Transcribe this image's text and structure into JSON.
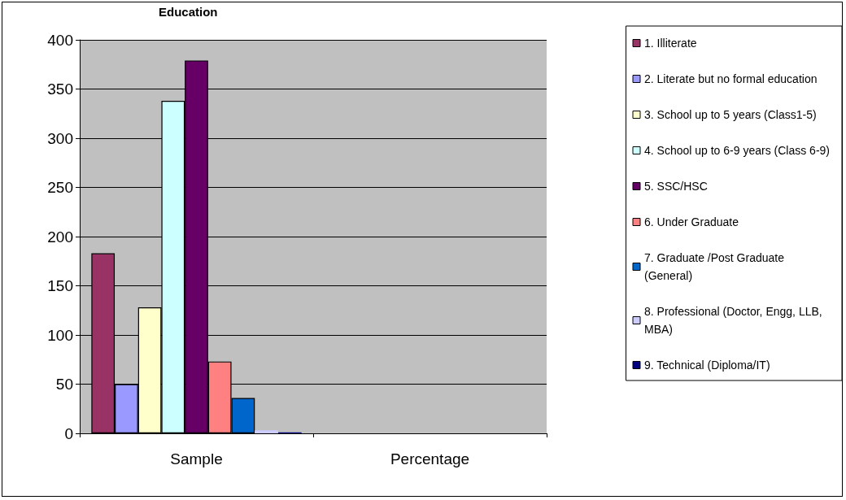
{
  "chart_data": {
    "type": "bar",
    "title": "Education",
    "categories": [
      "Sample",
      "Percentage"
    ],
    "series": [
      {
        "name": "1. Illiterate",
        "color": "#993366",
        "values": [
          183,
          null
        ]
      },
      {
        "name": "2. Literate but no formal education",
        "color": "#9999ff",
        "values": [
          50,
          null
        ]
      },
      {
        "name": "3. School up to 5 years (Class1-5)",
        "color": "#ffffcc",
        "values": [
          128,
          null
        ]
      },
      {
        "name": "4. School up to 6-9 years (Class 6-9)",
        "color": "#ccffff",
        "values": [
          338,
          null
        ]
      },
      {
        "name": "5. SSC/HSC",
        "color": "#660066",
        "values": [
          379,
          null
        ]
      },
      {
        "name": "6. Under Graduate",
        "color": "#ff8080",
        "values": [
          73,
          null
        ]
      },
      {
        "name": "7. Graduate /Post Graduate (General)",
        "color": "#0066cc",
        "values": [
          36,
          null
        ]
      },
      {
        "name": "8. Professional (Doctor, Engg, LLB,MBA)",
        "color": "#ccccff",
        "values": [
          3,
          null
        ]
      },
      {
        "name": "9. Technical (Diploma/IT)",
        "color": "#000080",
        "values": [
          1,
          null
        ]
      }
    ],
    "ylim": [
      0,
      400
    ],
    "yticks": [
      0,
      50,
      100,
      150,
      200,
      250,
      300,
      350,
      400
    ],
    "grid": "y",
    "legend": "right"
  }
}
